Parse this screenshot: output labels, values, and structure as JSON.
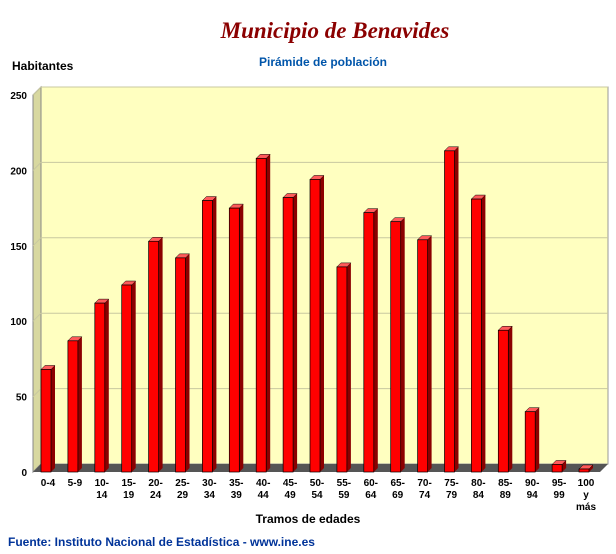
{
  "chart_data": {
    "type": "bar",
    "title": "Municipio de Benavides",
    "subtitle": "Pirámide de población",
    "ylabel": "Habitantes",
    "xlabel": "Tramos de edades",
    "source": "Fuente: Instituto Nacional de Estadística - www.ine.es",
    "ylim": [
      0,
      250
    ],
    "yticks": [
      0,
      50,
      100,
      150,
      200,
      250
    ],
    "grid": true,
    "categories": [
      [
        "0-4"
      ],
      [
        "5-9"
      ],
      [
        "10-",
        "14"
      ],
      [
        "15-",
        "19"
      ],
      [
        "20-",
        "24"
      ],
      [
        "25-",
        "29"
      ],
      [
        "30-",
        "34"
      ],
      [
        "35-",
        "39"
      ],
      [
        "40-",
        "44"
      ],
      [
        "45-",
        "49"
      ],
      [
        "50-",
        "54"
      ],
      [
        "55-",
        "59"
      ],
      [
        "60-",
        "64"
      ],
      [
        "65-",
        "69"
      ],
      [
        "70-",
        "74"
      ],
      [
        "75-",
        "79"
      ],
      [
        "80-",
        "84"
      ],
      [
        "85-",
        "89"
      ],
      [
        "90-",
        "94"
      ],
      [
        "95-",
        "99"
      ],
      [
        "100",
        "y",
        "más"
      ]
    ],
    "values": [
      68,
      87,
      112,
      124,
      153,
      142,
      180,
      175,
      208,
      182,
      194,
      136,
      172,
      166,
      154,
      213,
      181,
      94,
      40,
      5,
      2
    ],
    "colors": {
      "bar": "#ff0000",
      "bar_side": "#8c0000",
      "bar_top": "#ff5a5a",
      "plot_bg": "#ffffc0",
      "wall_side": "#d8d8a0",
      "floor": "#555555",
      "grid": "#c8c8a0",
      "title": "#8b0000",
      "subtitle": "#0055aa",
      "source": "#003399"
    }
  }
}
